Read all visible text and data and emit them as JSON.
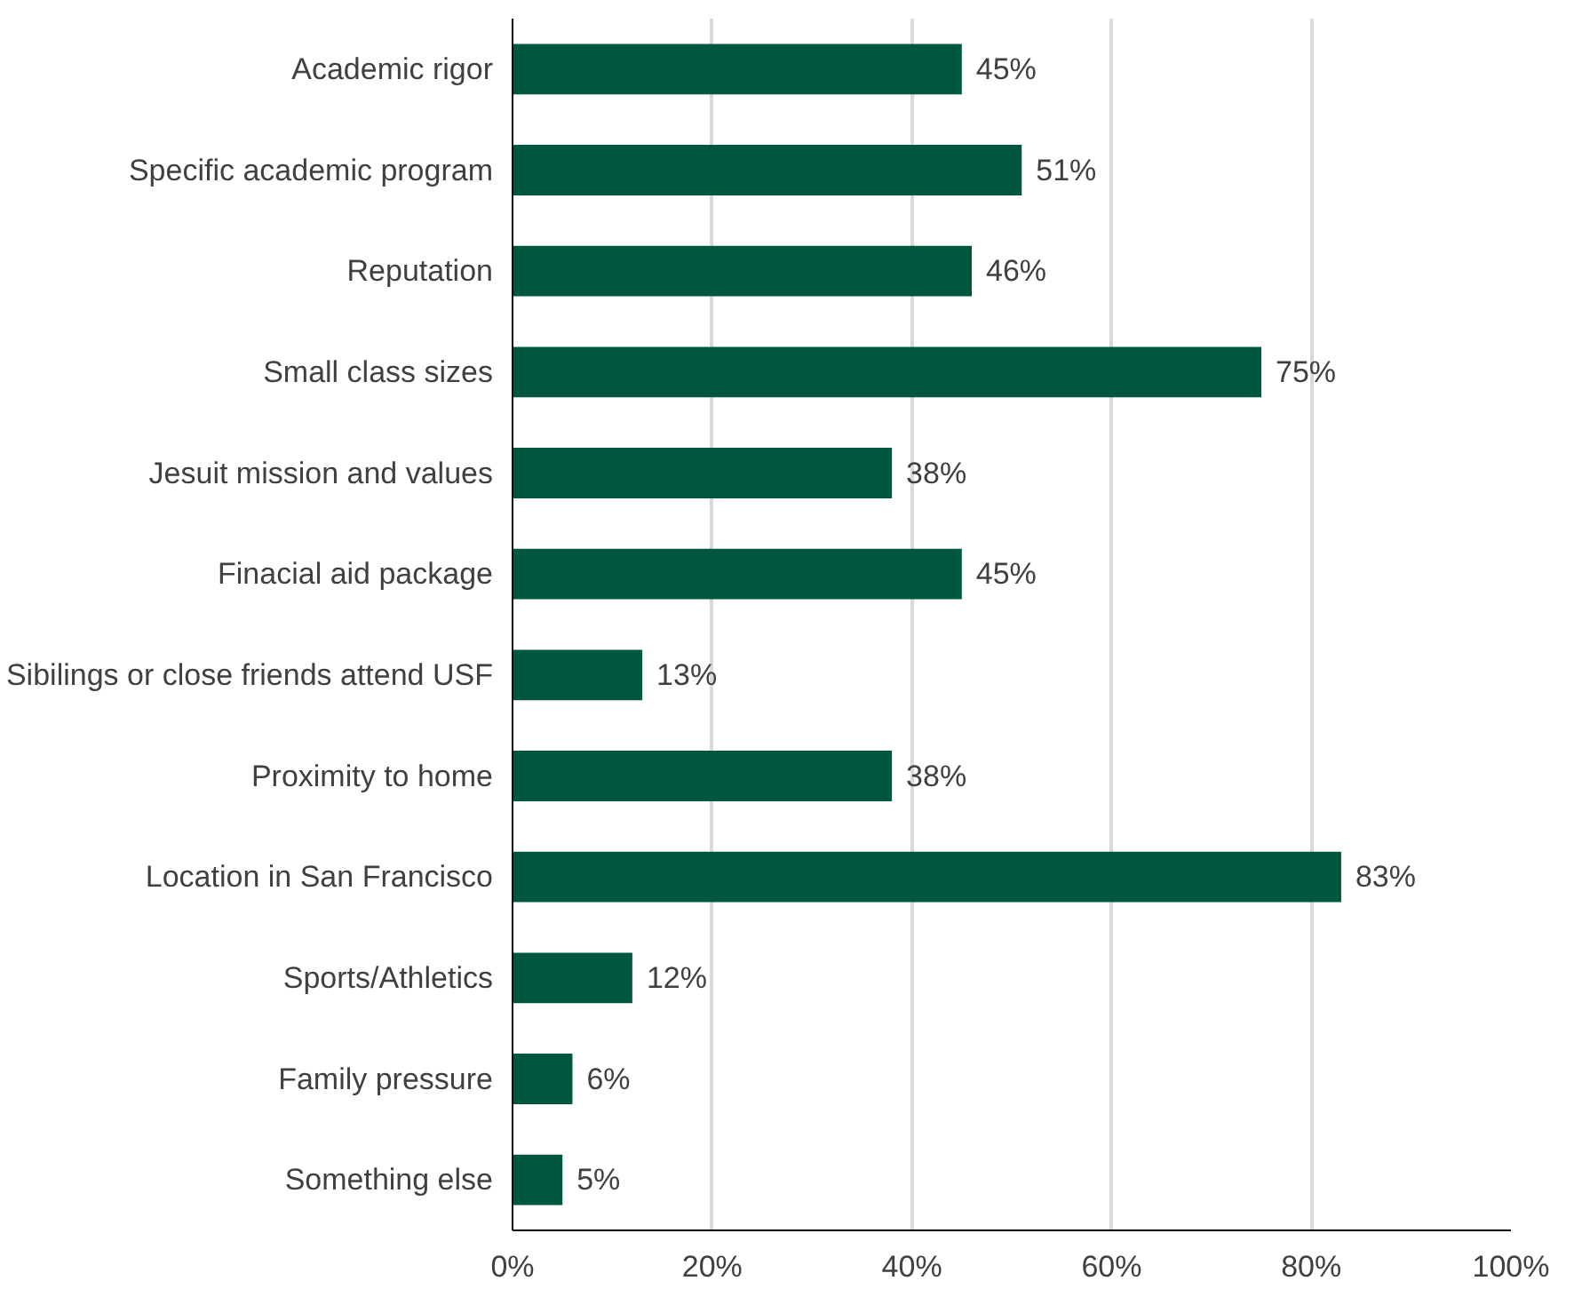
{
  "chart_data": {
    "type": "bar",
    "orientation": "horizontal",
    "categories": [
      "Academic rigor",
      "Specific academic program",
      "Reputation",
      "Small class sizes",
      "Jesuit mission and values",
      "Finacial aid package",
      "Sibilings or close friends attend USF",
      "Proximity to home",
      "Location in San Francisco",
      "Sports/Athletics",
      "Family pressure",
      "Something else"
    ],
    "values": [
      45,
      51,
      46,
      75,
      38,
      45,
      13,
      38,
      83,
      12,
      6,
      5
    ],
    "value_labels": [
      "45%",
      "51%",
      "46%",
      "75%",
      "38%",
      "45%",
      "13%",
      "38%",
      "83%",
      "12%",
      "6%",
      "5%"
    ],
    "color": "#00573f",
    "xlim": [
      0,
      100
    ],
    "xticks": [
      {
        "value": 0,
        "label": "0%"
      },
      {
        "value": 20,
        "label": "20%"
      },
      {
        "value": 40,
        "label": "40%"
      },
      {
        "value": 60,
        "label": "60%"
      },
      {
        "value": 80,
        "label": "80%"
      },
      {
        "value": 100,
        "label": "100%"
      }
    ],
    "grid": "x"
  }
}
